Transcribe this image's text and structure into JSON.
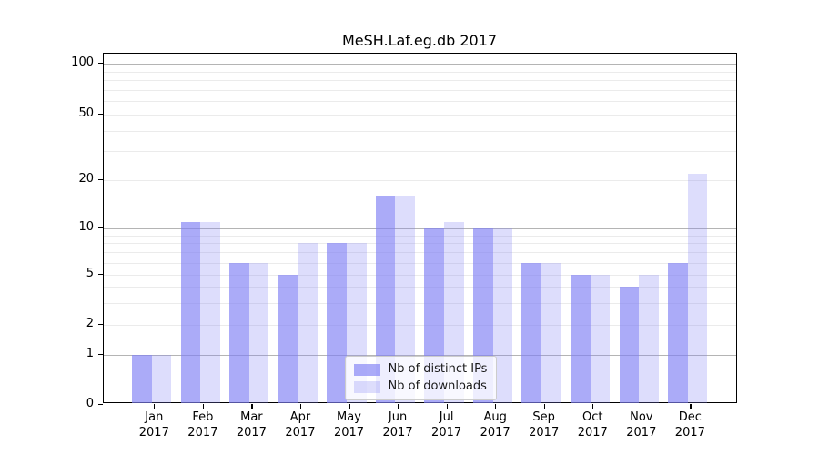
{
  "chart_data": {
    "type": "bar",
    "title": "MeSH.Laf.eg.db 2017",
    "categories": [
      "Jan",
      "Feb",
      "Mar",
      "Apr",
      "May",
      "Jun",
      "Jul",
      "Aug",
      "Sep",
      "Oct",
      "Nov",
      "Dec"
    ],
    "year": "2017",
    "series": [
      {
        "name": "Nb of distinct IPs",
        "color": "rgba(128,128,244,0.66)",
        "values": [
          1,
          11,
          6,
          5,
          8,
          16,
          10,
          10,
          6,
          5,
          4,
          6
        ]
      },
      {
        "name": "Nb of downloads",
        "color": "rgba(128,128,244,0.27)",
        "values": [
          1,
          11,
          6,
          8,
          8,
          16,
          11,
          10,
          6,
          5,
          5,
          22
        ]
      }
    ],
    "yscale": "log",
    "ylim": [
      0,
      110
    ],
    "ytick_labels": [
      0,
      1,
      2,
      5,
      10,
      20,
      50,
      100
    ],
    "grid_major_values": [
      1,
      10,
      100
    ],
    "grid_minor_values": [
      2,
      3,
      4,
      5,
      6,
      7,
      8,
      9,
      20,
      30,
      40,
      50,
      60,
      70,
      80,
      90
    ],
    "legend_position": "lower center"
  }
}
